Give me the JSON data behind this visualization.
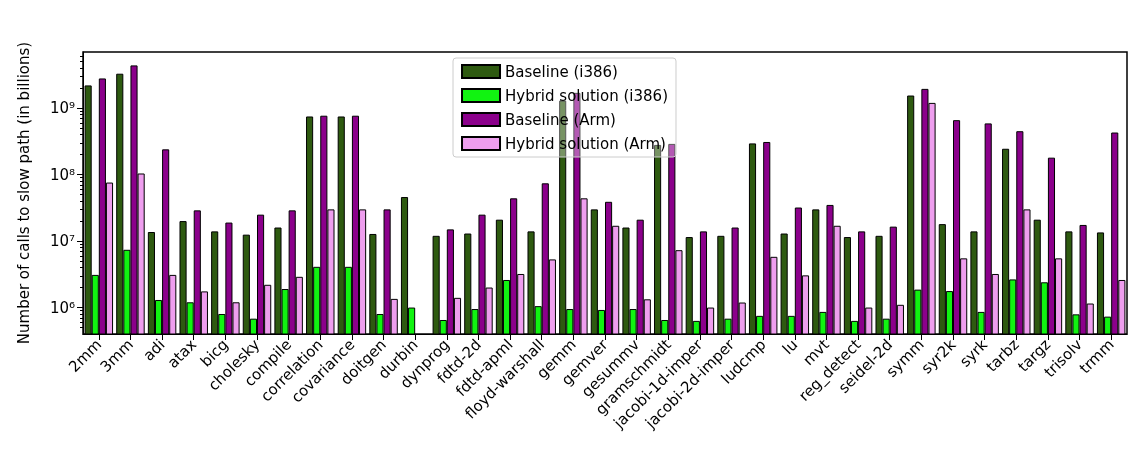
{
  "chart_data": {
    "type": "bar",
    "ylabel": "Number of calls to slow path (in billions)",
    "categories": [
      "2mm",
      "3mm",
      "adi",
      "atax",
      "bicg",
      "cholesky",
      "compile",
      "correlation",
      "covariance",
      "doitgen",
      "durbin",
      "dynprog",
      "fdtd-2d",
      "fdtd-apml",
      "floyd-warshall",
      "gemm",
      "gemver",
      "gesummv",
      "gramschmidt",
      "jacobi-1d-imper",
      "jacobi-2d-imper",
      "ludcmp",
      "lu",
      "mvt",
      "reg_detect",
      "seidel-2d",
      "symm",
      "syr2k",
      "syrk",
      "tarbz",
      "targz",
      "trisolv",
      "trmm"
    ],
    "series": [
      {
        "name": "Baseline (i386)",
        "color": "#2e5a10",
        "values": [
          2200000000,
          3300000000,
          13700000,
          20000000,
          14000000,
          12500000,
          16000000,
          750000000,
          750000000,
          12800000,
          46000000,
          12000000,
          13000000,
          21000000,
          14000000,
          1300000000,
          30000000,
          16000000,
          280000000,
          11500000,
          12000000,
          295000000,
          13000000,
          30000000,
          11500000,
          12000000,
          1550000000,
          18000000,
          14000000,
          245000000,
          21000000,
          14000000,
          13500000
        ]
      },
      {
        "name": "Hybrid solution (i386)",
        "color": "#11f311",
        "values": [
          3100000,
          7400000,
          1300000,
          1200000,
          800000,
          680000,
          1900000,
          4100000,
          4100000,
          800000,
          1000000,
          650000,
          950000,
          2600000,
          1050000,
          950000,
          920000,
          950000,
          650000,
          630000,
          680000,
          750000,
          750000,
          860000,
          630000,
          680000,
          1860000,
          1770000,
          860000,
          2650000,
          2400000,
          790000,
          730000
        ]
      },
      {
        "name": "Baseline (Arm)",
        "color": "#8b008b",
        "values": [
          2800000000,
          4400000000,
          240000000,
          29000000,
          19000000,
          25000000,
          29000000,
          770000000,
          770000000,
          30000000,
          null,
          15000000,
          25000000,
          44000000,
          74000000,
          1700000000,
          39000000,
          21000000,
          290000000,
          14000000,
          16000000,
          310000000,
          32000000,
          35000000,
          14000000,
          16500000,
          1950000000,
          660000000,
          590000000,
          450000000,
          180000000,
          17500000,
          430000000
        ]
      },
      {
        "name": "Hybrid solution (Arm)",
        "color": "#ee9eee",
        "values": [
          76000000,
          104000000,
          3100000,
          1750000,
          1200000,
          2200000,
          2900000,
          30000000,
          30000000,
          1350000,
          null,
          1400000,
          2000000,
          3200000,
          5300000,
          44000000,
          17000000,
          1330000,
          7300000,
          1000000,
          1190000,
          5800000,
          3050000,
          17000000,
          1000000,
          1100000,
          1200000000,
          5500000,
          3200000,
          30000000,
          5500000,
          1150000,
          2600000
        ]
      }
    ],
    "log": true,
    "ylim": [
      400000,
      7000000000
    ],
    "yticks": [
      {
        "value": 1000000,
        "label": "10⁶"
      },
      {
        "value": 10000000,
        "label": "10⁷"
      },
      {
        "value": 100000000,
        "label": "10⁸"
      },
      {
        "value": 1000000000,
        "label": "10⁹"
      }
    ],
    "legend": "top",
    "grid": false
  }
}
